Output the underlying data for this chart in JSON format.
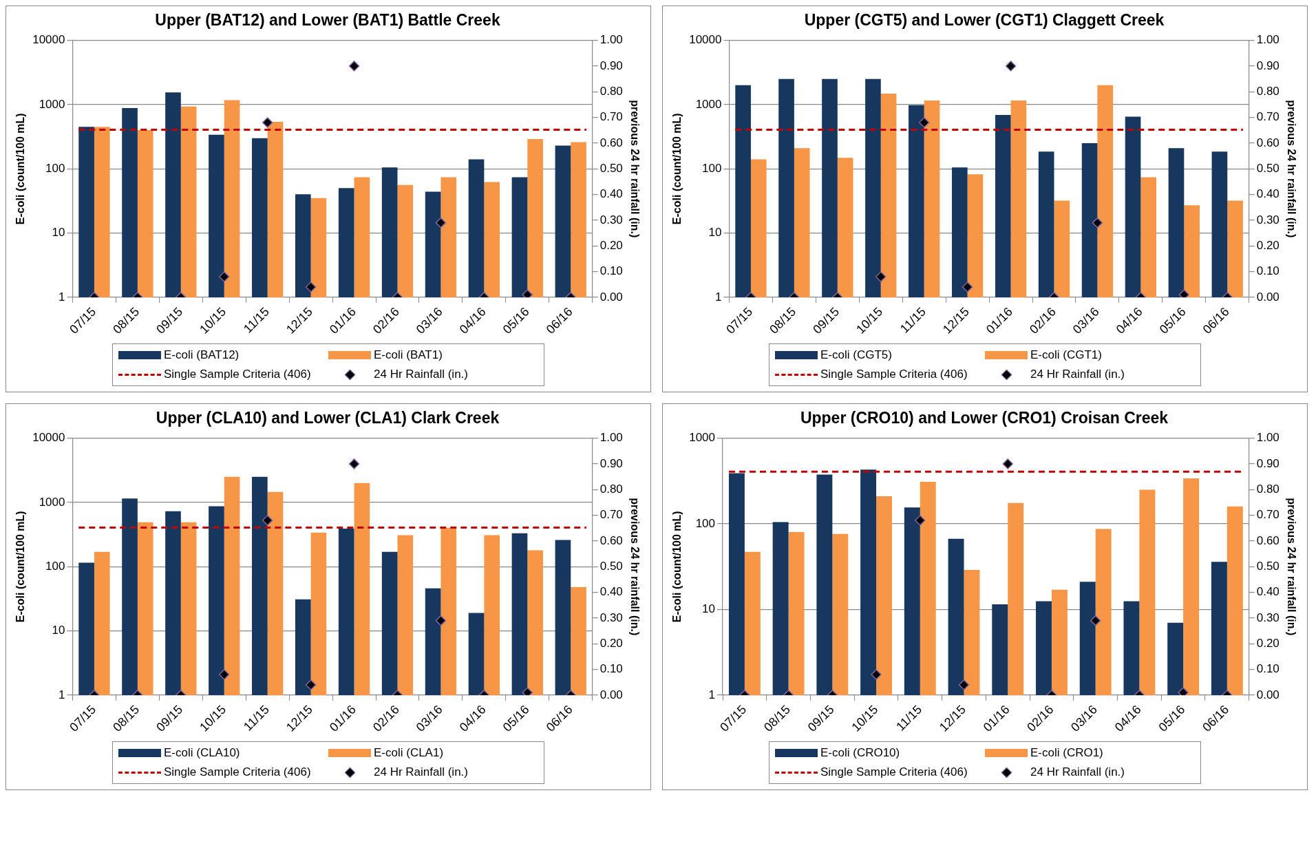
{
  "chart_data": [
    {
      "type": "bar",
      "title": "Upper (BAT12) and Lower (BAT1) Battle Creek",
      "ylabel": "E-coli (count/100 mL)",
      "y2label": "previous 24 hr rainfall (in.)",
      "categories": [
        "07/15",
        "08/15",
        "09/15",
        "10/15",
        "11/15",
        "12/15",
        "01/16",
        "02/16",
        "03/16",
        "04/16",
        "05/16",
        "06/16"
      ],
      "log": "y",
      "grid": "y",
      "legend": "bottom",
      "marker": "diamond",
      "ylim": [
        1,
        10000
      ],
      "yticks": [
        1,
        10,
        100,
        1000,
        10000
      ],
      "y2lim": [
        0,
        1
      ],
      "y2ticks": [
        {
          "value": 0,
          "label": "0.00"
        },
        {
          "value": 0.1,
          "label": "0.10"
        },
        {
          "value": 0.2,
          "label": "0.20"
        },
        {
          "value": 0.3,
          "label": "0.30"
        },
        {
          "value": 0.4,
          "label": "0.40"
        },
        {
          "value": 0.5,
          "label": "0.50"
        },
        {
          "value": 0.6,
          "label": "0.60"
        },
        {
          "value": 0.7,
          "label": "0.70"
        },
        {
          "value": 0.8,
          "label": "0.80"
        },
        {
          "value": 0.9,
          "label": "0.90"
        },
        {
          "value": 1,
          "label": "1.00"
        }
      ],
      "series": [
        {
          "name": "E-coli (BAT12)",
          "color": "#17375e",
          "values": [
            450,
            880,
            1550,
            340,
            300,
            40,
            50,
            105,
            44,
            140,
            74,
            230
          ]
        },
        {
          "name": "E-coli (BAT1)",
          "color": "#f79646",
          "values": [
            450,
            400,
            930,
            1170,
            540,
            35,
            74,
            56,
            74,
            62,
            290,
            260
          ]
        },
        {
          "name": "24 Hr Rainfall (in.)",
          "type": "scatter",
          "axis": "y2",
          "color": "#000000",
          "values": [
            0,
            0,
            0,
            0.08,
            0.68,
            0.04,
            0.9,
            0,
            0.29,
            0,
            0.01,
            0
          ]
        }
      ],
      "ref_lines": [
        {
          "axis": "y",
          "value": 406,
          "label": "Single Sample Criteria (406)",
          "color": "#c00000",
          "line_style": "dashed"
        }
      ]
    },
    {
      "type": "bar",
      "title": "Upper (CGT5) and Lower (CGT1) Claggett Creek",
      "ylabel": "E-coli (count/100 mL)",
      "y2label": "previous 24 hr rainfall (in.)",
      "categories": [
        "07/15",
        "08/15",
        "09/15",
        "10/15",
        "11/15",
        "12/15",
        "01/16",
        "02/16",
        "03/16",
        "04/16",
        "05/16",
        "06/16"
      ],
      "log": "y",
      "grid": "y",
      "legend": "bottom",
      "marker": "diamond",
      "ylim": [
        1,
        10000
      ],
      "yticks": [
        1,
        10,
        100,
        1000,
        10000
      ],
      "y2lim": [
        0,
        1
      ],
      "y2ticks": [
        {
          "value": 0,
          "label": "0.00"
        },
        {
          "value": 0.1,
          "label": "0.10"
        },
        {
          "value": 0.2,
          "label": "0.20"
        },
        {
          "value": 0.3,
          "label": "0.30"
        },
        {
          "value": 0.4,
          "label": "0.40"
        },
        {
          "value": 0.5,
          "label": "0.50"
        },
        {
          "value": 0.6,
          "label": "0.60"
        },
        {
          "value": 0.7,
          "label": "0.70"
        },
        {
          "value": 0.8,
          "label": "0.80"
        },
        {
          "value": 0.9,
          "label": "0.90"
        },
        {
          "value": 1,
          "label": "1.00"
        }
      ],
      "series": [
        {
          "name": "E-coli (CGT5)",
          "color": "#17375e",
          "values": [
            2000,
            2500,
            2500,
            2500,
            980,
            105,
            690,
            185,
            250,
            650,
            210,
            185
          ]
        },
        {
          "name": "E-coli (CGT1)",
          "color": "#f79646",
          "values": [
            140,
            210,
            148,
            1480,
            1160,
            82,
            1160,
            32,
            2000,
            74,
            27,
            32
          ]
        },
        {
          "name": "24 Hr Rainfall (in.)",
          "type": "scatter",
          "axis": "y2",
          "color": "#000000",
          "values": [
            0,
            0,
            0,
            0.08,
            0.68,
            0.04,
            0.9,
            0,
            0.29,
            0,
            0.01,
            0
          ]
        }
      ],
      "ref_lines": [
        {
          "axis": "y",
          "value": 406,
          "label": "Single Sample Criteria (406)",
          "color": "#c00000",
          "line_style": "dashed"
        }
      ]
    },
    {
      "type": "bar",
      "title": "Upper (CLA10) and Lower (CLA1) Clark Creek",
      "ylabel": "E-coli (count/100 mL)",
      "y2label": "previous 24 hr rainfall (in.)",
      "categories": [
        "07/15",
        "08/15",
        "09/15",
        "10/15",
        "11/15",
        "12/15",
        "01/16",
        "02/16",
        "03/16",
        "04/16",
        "05/16",
        "06/16"
      ],
      "log": "y",
      "grid": "y",
      "legend": "bottom",
      "marker": "diamond",
      "ylim": [
        1,
        10000
      ],
      "yticks": [
        1,
        10,
        100,
        1000,
        10000
      ],
      "y2lim": [
        0,
        1
      ],
      "y2ticks": [
        {
          "value": 0,
          "label": "0.00"
        },
        {
          "value": 0.1,
          "label": "0.10"
        },
        {
          "value": 0.2,
          "label": "0.20"
        },
        {
          "value": 0.3,
          "label": "0.30"
        },
        {
          "value": 0.4,
          "label": "0.40"
        },
        {
          "value": 0.5,
          "label": "0.50"
        },
        {
          "value": 0.6,
          "label": "0.60"
        },
        {
          "value": 0.7,
          "label": "0.70"
        },
        {
          "value": 0.8,
          "label": "0.80"
        },
        {
          "value": 0.9,
          "label": "0.90"
        },
        {
          "value": 1,
          "label": "1.00"
        }
      ],
      "series": [
        {
          "name": "E-coli (CLA10)",
          "color": "#17375e",
          "values": [
            115,
            1150,
            730,
            870,
            2500,
            31,
            390,
            170,
            46,
            19,
            330,
            260
          ]
        },
        {
          "name": "E-coli (CLA1)",
          "color": "#f79646",
          "values": [
            170,
            490,
            490,
            2500,
            1450,
            340,
            2000,
            310,
            400,
            310,
            180,
            48
          ]
        },
        {
          "name": "24 Hr Rainfall (in.)",
          "type": "scatter",
          "axis": "y2",
          "color": "#000000",
          "values": [
            0,
            0,
            0,
            0.08,
            0.68,
            0.04,
            0.9,
            0,
            0.29,
            0,
            0.01,
            0
          ]
        }
      ],
      "ref_lines": [
        {
          "axis": "y",
          "value": 406,
          "label": "Single Sample Criteria (406)",
          "color": "#c00000",
          "line_style": "dashed"
        }
      ]
    },
    {
      "type": "bar",
      "title": "Upper (CRO10) and Lower (CRO1) Croisan Creek",
      "ylabel": "E-coli (count/100 mL)",
      "y2label": "previous 24 hr rainfall (in.)",
      "categories": [
        "07/15",
        "08/15",
        "09/15",
        "10/15",
        "11/15",
        "12/15",
        "01/16",
        "02/16",
        "03/16",
        "04/16",
        "05/16",
        "06/16"
      ],
      "log": "y",
      "grid": "y",
      "legend": "bottom",
      "marker": "diamond",
      "ylim": [
        1,
        1000
      ],
      "yticks": [
        1,
        10,
        100,
        1000
      ],
      "y2lim": [
        0,
        1
      ],
      "y2ticks": [
        {
          "value": 0,
          "label": "0.00"
        },
        {
          "value": 0.1,
          "label": "0.10"
        },
        {
          "value": 0.2,
          "label": "0.20"
        },
        {
          "value": 0.3,
          "label": "0.30"
        },
        {
          "value": 0.4,
          "label": "0.40"
        },
        {
          "value": 0.5,
          "label": "0.50"
        },
        {
          "value": 0.6,
          "label": "0.60"
        },
        {
          "value": 0.7,
          "label": "0.70"
        },
        {
          "value": 0.8,
          "label": "0.80"
        },
        {
          "value": 0.9,
          "label": "0.90"
        },
        {
          "value": 1,
          "label": "1.00"
        }
      ],
      "series": [
        {
          "name": "E-coli (CRO10)",
          "color": "#17375e",
          "values": [
            390,
            105,
            375,
            430,
            155,
            67,
            11.5,
            12.5,
            21,
            12.5,
            7,
            36
          ]
        },
        {
          "name": "E-coli (CRO1)",
          "color": "#f79646",
          "values": [
            47,
            80,
            76,
            210,
            310,
            29,
            175,
            17,
            87,
            250,
            340,
            160
          ]
        },
        {
          "name": "24 Hr Rainfall (in.)",
          "type": "scatter",
          "axis": "y2",
          "color": "#000000",
          "values": [
            0,
            0,
            0,
            0.08,
            0.68,
            0.04,
            0.9,
            0,
            0.29,
            0,
            0.01,
            0
          ]
        }
      ],
      "ref_lines": [
        {
          "axis": "y",
          "value": 406,
          "label": "Single Sample Criteria (406)",
          "color": "#c00000",
          "line_style": "dashed"
        }
      ]
    }
  ]
}
